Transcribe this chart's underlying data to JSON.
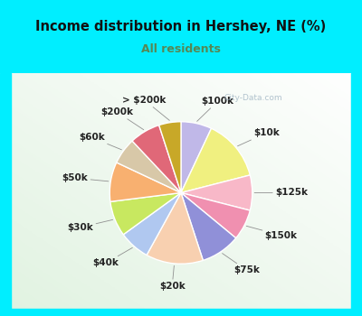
{
  "title": "Income distribution in Hershey, NE (%)",
  "subtitle": "All residents",
  "title_color": "#111111",
  "subtitle_color": "#558855",
  "bg_cyan": "#00eeff",
  "bg_chart_color": "#d8eedc",
  "watermark": "City-Data.com",
  "segments": [
    {
      "label": "$100k",
      "value": 7,
      "color": "#c0b8e8"
    },
    {
      "label": "$10k",
      "value": 14,
      "color": "#f0f080"
    },
    {
      "label": "$125k",
      "value": 8,
      "color": "#f8b8c8"
    },
    {
      "label": "$150k",
      "value": 7,
      "color": "#f090b0"
    },
    {
      "label": "$75k",
      "value": 9,
      "color": "#9090d8"
    },
    {
      "label": "$20k",
      "value": 13,
      "color": "#f8d0b0"
    },
    {
      "label": "$40k",
      "value": 7,
      "color": "#b0c8f0"
    },
    {
      "label": "$30k",
      "value": 8,
      "color": "#c8e860"
    },
    {
      "label": "$50k",
      "value": 9,
      "color": "#f8b070"
    },
    {
      "label": "$60k",
      "value": 6,
      "color": "#d8c8a8"
    },
    {
      "label": "$200k",
      "value": 7,
      "color": "#e06878"
    },
    {
      "label": "> $200k",
      "value": 5,
      "color": "#c8a828"
    }
  ],
  "label_fontsize": 7.5,
  "label_color": "#222222",
  "label_fontweight": "bold"
}
